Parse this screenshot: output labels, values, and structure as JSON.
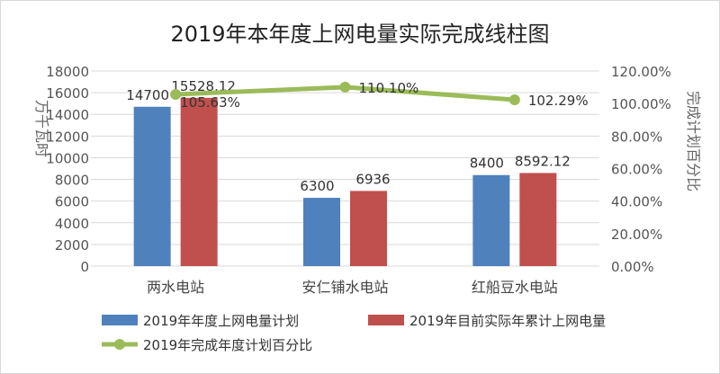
{
  "chart_data": {
    "type": "bar+line",
    "title": "2019年本年度上网电量实际完成线柱图",
    "ylabel": "万千瓦时",
    "y2label": "完成计划百分比",
    "categories": [
      "两水电站",
      "安仁铺水电站",
      "红船豆水电站"
    ],
    "ylim": [
      0,
      18000
    ],
    "yticks": [
      "0",
      "2000",
      "4000",
      "6000",
      "8000",
      "10000",
      "12000",
      "14000",
      "16000",
      "18000"
    ],
    "y2lim": [
      0,
      120
    ],
    "y2ticks": [
      "0.00%",
      "20.00%",
      "40.00%",
      "60.00%",
      "80.00%",
      "100.00%",
      "120.00%"
    ],
    "grid": true,
    "legend": "bottom",
    "series": [
      {
        "name": "2019年年度上网电量计划",
        "type": "bar",
        "axis": "left",
        "color": "#4f81bd",
        "values": [
          14700,
          6300,
          8400
        ],
        "labels": [
          "14700",
          "6300",
          "8400"
        ]
      },
      {
        "name": "2019年目前实际年累计上网电量",
        "type": "bar",
        "axis": "left",
        "color": "#c0504d",
        "values": [
          15528.12,
          6936,
          8592.12
        ],
        "labels": [
          "15528.12",
          "6936",
          "8592.12"
        ]
      },
      {
        "name": "2019年完成年度计划百分比",
        "type": "line",
        "axis": "right",
        "color": "#9bbb59",
        "values": [
          105.63,
          110.1,
          102.29
        ],
        "labels": [
          "105.63%",
          "110.10%",
          "102.29%"
        ]
      }
    ]
  }
}
